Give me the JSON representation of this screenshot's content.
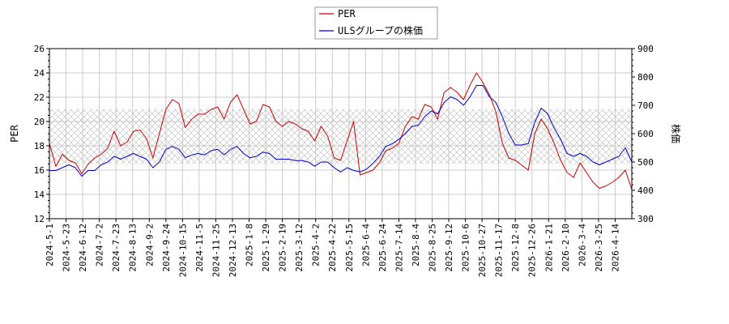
{
  "chart_data": {
    "type": "line",
    "legend": {
      "placement": "top-center",
      "entries": [
        {
          "label": "PER",
          "color": "#cc0000"
        },
        {
          "label": "ULSグループの株価",
          "color": "#0000cc"
        }
      ]
    },
    "ylabel_left": "PER",
    "ylabel_right": "株価",
    "left_axis": {
      "ylim": [
        12,
        26
      ],
      "ticks": [
        "12",
        "14",
        "16",
        "18",
        "20",
        "22",
        "24",
        "26"
      ]
    },
    "right_axis": {
      "ylim": [
        300,
        900
      ],
      "ticks": [
        "300",
        "400",
        "500",
        "600",
        "700",
        "800",
        "900"
      ]
    },
    "shaded_band": {
      "axis": "left",
      "range": [
        16.5,
        21
      ]
    },
    "grid": true,
    "x_tick_labels": [
      "2024-5-1",
      "2024-5-23",
      "2024-6-12",
      "2024-7-2",
      "2024-7-23",
      "2024-8-13",
      "2024-9-2",
      "2024-9-24",
      "2024-10-15",
      "2024-11-5",
      "2024-11-25",
      "2024-12-13",
      "2025-1-8",
      "2025-1-29",
      "2025-2-19",
      "2025-3-12",
      "2025-4-2",
      "2025-4-22",
      "2025-5-15",
      "2025-6-4",
      "2025-6-24",
      "2025-7-14",
      "2025-8-4",
      "2025-8-25",
      "2025-9-12",
      "2025-10-6",
      "2025-10-27",
      "2025-11-17",
      "2025-12-8",
      "2025-12-26",
      "2026-1-21",
      "2026-2-10",
      "2026-3-4",
      "2026-3-25",
      "2026-4-14"
    ],
    "series": [
      {
        "name": "PER",
        "color": "#cc0000",
        "axis": "left",
        "values": [
          18.2,
          16.3,
          17.3,
          16.8,
          16.6,
          15.7,
          16.5,
          17.0,
          17.3,
          17.8,
          19.2,
          18.0,
          18.3,
          19.2,
          19.3,
          18.6,
          17.0,
          19.0,
          21.0,
          21.8,
          21.5,
          19.5,
          20.2,
          20.6,
          20.6,
          21.0,
          21.2,
          20.2,
          21.6,
          22.2,
          21.0,
          19.8,
          20.0,
          21.4,
          21.2,
          20.0,
          19.6,
          20.0,
          19.8,
          19.4,
          19.2,
          18.4,
          19.6,
          18.8,
          17.0,
          16.8,
          18.4,
          20.0,
          15.6,
          15.8,
          16.0,
          16.6,
          17.6,
          17.8,
          18.2,
          19.6,
          20.4,
          20.2,
          21.4,
          21.2,
          20.2,
          22.4,
          22.8,
          22.4,
          21.8,
          23.0,
          24.0,
          23.2,
          22.2,
          20.8,
          18.2,
          17.0,
          16.8,
          16.4,
          16.0,
          19.0,
          20.2,
          19.4,
          18.2,
          16.8,
          15.8,
          15.4,
          16.6,
          15.8,
          15.0,
          14.5,
          14.7,
          15.0,
          15.4,
          16.0,
          14.4
        ]
      },
      {
        "name": "ULSグループの株価",
        "color": "#0000cc",
        "axis": "right",
        "values": [
          470,
          470,
          480,
          490,
          480,
          450,
          470,
          470,
          490,
          500,
          520,
          510,
          520,
          530,
          520,
          510,
          480,
          500,
          545,
          555,
          545,
          515,
          525,
          530,
          525,
          540,
          545,
          525,
          545,
          555,
          530,
          515,
          520,
          535,
          530,
          510,
          510,
          510,
          505,
          505,
          500,
          485,
          500,
          500,
          480,
          465,
          480,
          470,
          465,
          475,
          495,
          520,
          555,
          565,
          580,
          600,
          625,
          630,
          660,
          680,
          670,
          710,
          730,
          720,
          700,
          730,
          770,
          770,
          730,
          710,
          660,
          600,
          560,
          560,
          565,
          640,
          690,
          670,
          620,
          580,
          530,
          520,
          530,
          520,
          500,
          490,
          500,
          510,
          520,
          550,
          500
        ]
      }
    ]
  }
}
